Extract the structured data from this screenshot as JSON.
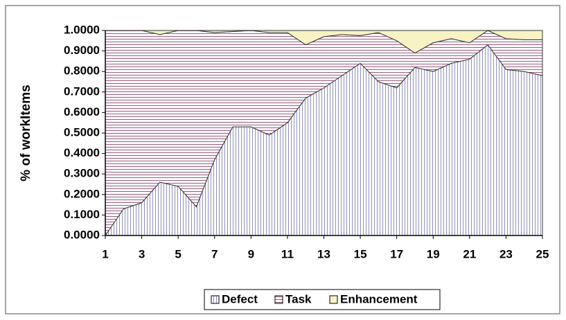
{
  "chart_data": {
    "type": "stacked_area",
    "y_label": "% of workItems",
    "x": [
      1,
      2,
      3,
      4,
      5,
      6,
      7,
      8,
      9,
      10,
      11,
      12,
      13,
      14,
      15,
      16,
      17,
      18,
      19,
      20,
      21,
      22,
      23,
      24,
      25
    ],
    "xlim": [
      1,
      25
    ],
    "xticks": [
      1,
      3,
      5,
      7,
      9,
      11,
      13,
      15,
      17,
      19,
      21,
      23,
      25
    ],
    "ylim": [
      0,
      1
    ],
    "yticks": [
      {
        "value": 0,
        "label": "0.0000"
      },
      {
        "value": 0.1,
        "label": "0.1000"
      },
      {
        "value": 0.2,
        "label": "0.2000"
      },
      {
        "value": 0.3,
        "label": "0.3000"
      },
      {
        "value": 0.4,
        "label": "0.4000"
      },
      {
        "value": 0.5,
        "label": "0.5000"
      },
      {
        "value": 0.6,
        "label": "0.6000"
      },
      {
        "value": 0.7,
        "label": "0.7000"
      },
      {
        "value": 0.8,
        "label": "0.8000"
      },
      {
        "value": 0.9,
        "label": "0.9000"
      },
      {
        "value": 1,
        "label": "1.0000"
      }
    ],
    "legend": "bottom",
    "series": [
      {
        "name": "Defect",
        "color": "#8f8fb8",
        "values": [
          0.0,
          0.13,
          0.16,
          0.26,
          0.24,
          0.14,
          0.37,
          0.53,
          0.53,
          0.49,
          0.55,
          0.67,
          0.72,
          0.78,
          0.84,
          0.75,
          0.72,
          0.82,
          0.8,
          0.84,
          0.86,
          0.93,
          0.81,
          0.8,
          0.78
        ]
      },
      {
        "name": "Task",
        "color": "#9a5a80",
        "values": [
          1.0,
          0.87,
          0.84,
          0.72,
          0.76,
          0.86,
          0.62,
          0.465,
          0.47,
          0.5,
          0.44,
          0.26,
          0.25,
          0.2,
          0.135,
          0.24,
          0.23,
          0.07,
          0.14,
          0.12,
          0.08,
          0.07,
          0.15,
          0.155,
          0.175
        ]
      },
      {
        "name": "Enhancement",
        "color": "#f7f3c4",
        "values": [
          0,
          0,
          0,
          0.02,
          0,
          0,
          0.01,
          0.005,
          0,
          0.01,
          0.01,
          0.07,
          0.03,
          0.02,
          0.025,
          0.01,
          0.05,
          0.11,
          0.06,
          0.04,
          0.06,
          0,
          0.04,
          0.045,
          0.045
        ]
      }
    ]
  }
}
